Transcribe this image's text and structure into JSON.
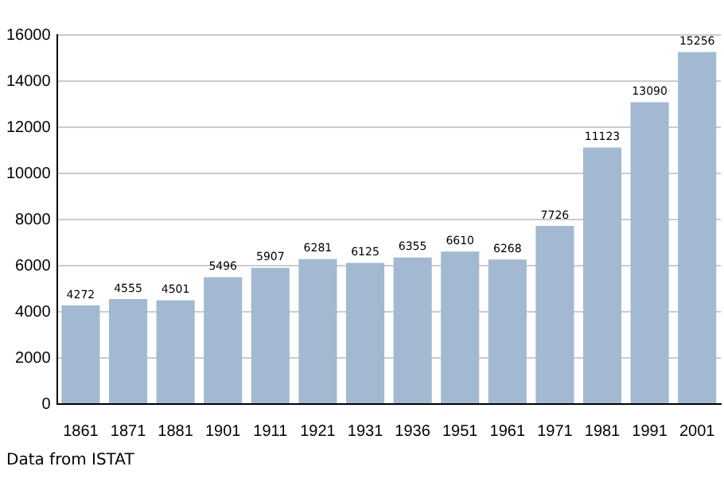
{
  "chart_data": {
    "type": "bar",
    "categories": [
      "1861",
      "1871",
      "1881",
      "1901",
      "1911",
      "1921",
      "1931",
      "1936",
      "1951",
      "1961",
      "1971",
      "1981",
      "1991",
      "2001"
    ],
    "values": [
      4272,
      4555,
      4501,
      5496,
      5907,
      6281,
      6125,
      6355,
      6610,
      6268,
      7726,
      11123,
      13090,
      15256
    ],
    "color": "#a2b9d1",
    "ylim": [
      0,
      16000
    ],
    "yticks": [
      0,
      2000,
      4000,
      6000,
      8000,
      10000,
      12000,
      14000,
      16000
    ],
    "grid": "y",
    "legend": false,
    "data_labels": true,
    "annotations": [
      "Data from ISTAT"
    ]
  }
}
